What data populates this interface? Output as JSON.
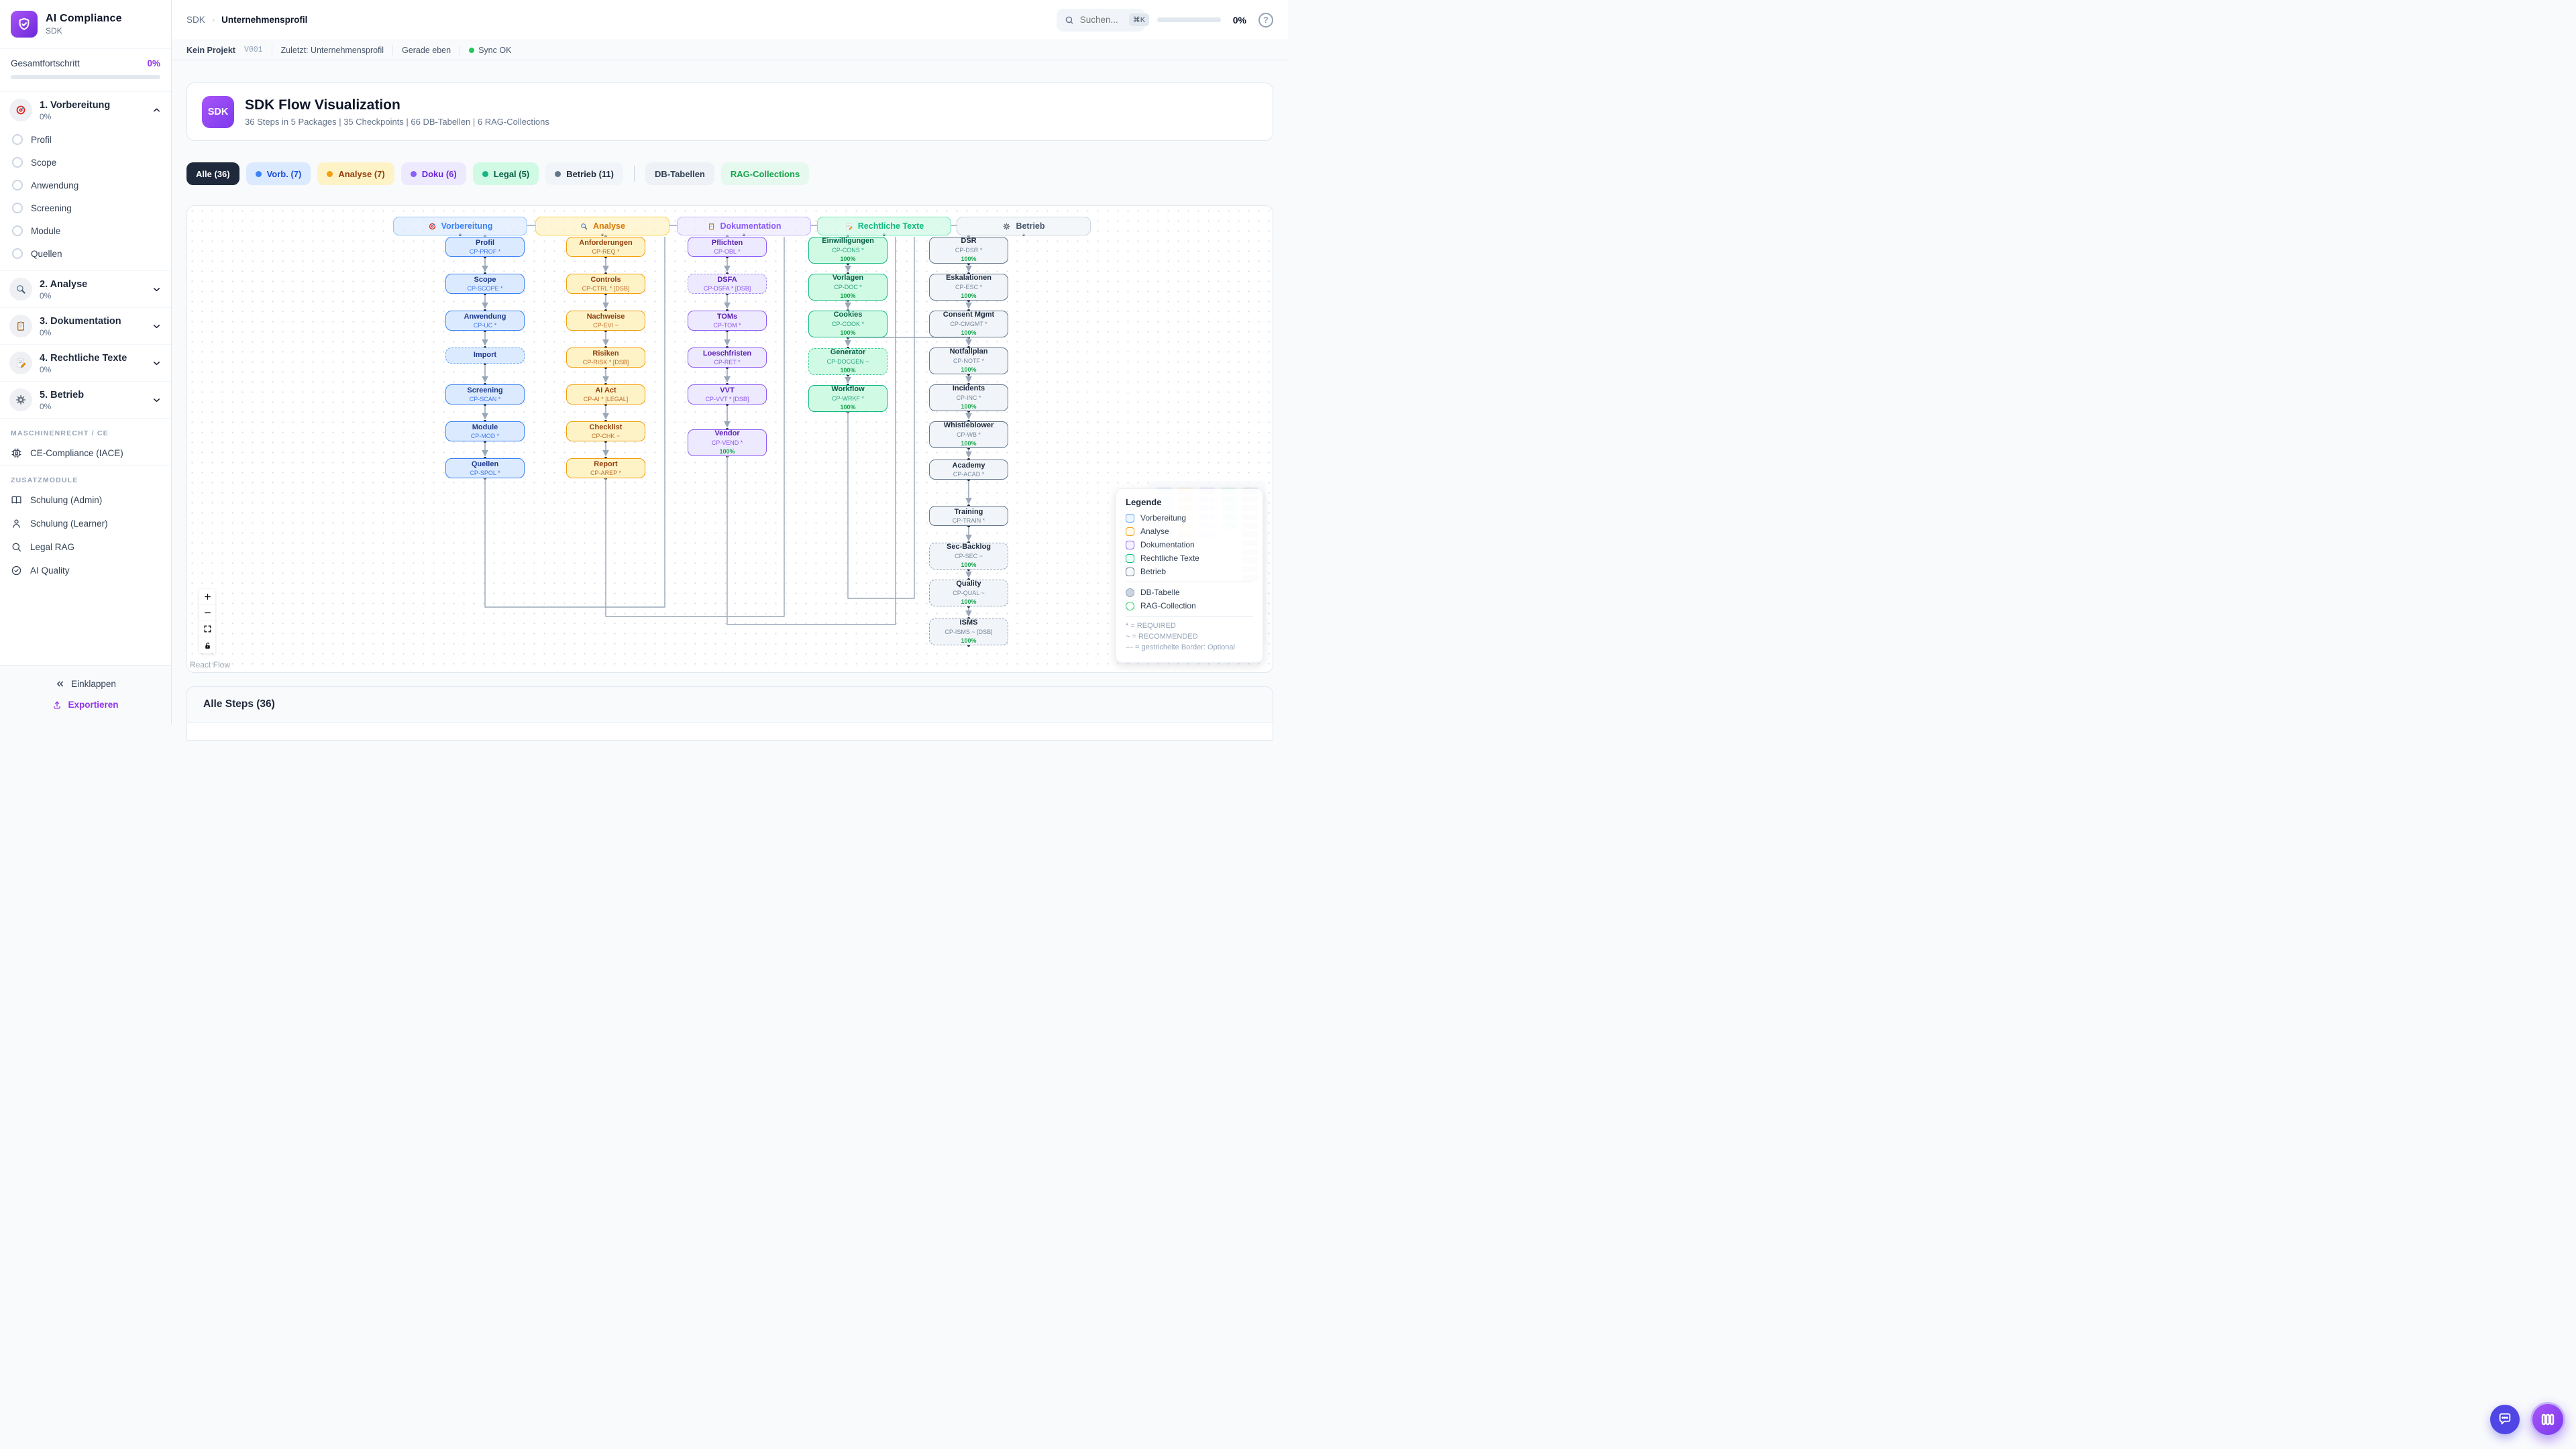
{
  "app": {
    "name": "AI Compliance",
    "subtitle": "SDK"
  },
  "sidebar": {
    "progress": {
      "label": "Gesamtfortschritt",
      "value": "0%"
    },
    "sections": [
      {
        "label": "1. Vorbereitung",
        "value": "0%",
        "icon": "target",
        "expanded": true,
        "items": [
          "Profil",
          "Scope",
          "Anwendung",
          "Screening",
          "Module",
          "Quellen"
        ]
      },
      {
        "label": "2. Analyse",
        "value": "0%",
        "icon": "magnifier",
        "expanded": false
      },
      {
        "label": "3. Dokumentation",
        "value": "0%",
        "icon": "clipboard",
        "expanded": false
      },
      {
        "label": "4. Rechtliche Texte",
        "value": "0%",
        "icon": "memo",
        "expanded": false
      },
      {
        "label": "5. Betrieb",
        "value": "0%",
        "icon": "gear",
        "expanded": false
      }
    ],
    "groups": [
      {
        "header": "MASCHINENRECHT / CE",
        "items": [
          {
            "label": "CE-Compliance (IACE)",
            "icon": "cpu"
          }
        ]
      },
      {
        "header": "ZUSATZMODULE",
        "items": [
          {
            "label": "Schulung (Admin)",
            "icon": "book"
          },
          {
            "label": "Schulung (Learner)",
            "icon": "user"
          },
          {
            "label": "Legal RAG",
            "icon": "search"
          },
          {
            "label": "AI Quality",
            "icon": "check-circle"
          }
        ]
      }
    ],
    "footer": {
      "collapse": "Einklappen",
      "export": "Exportieren"
    }
  },
  "topbar": {
    "breadcrumb": {
      "root": "SDK",
      "current": "Unternehmensprofil"
    },
    "search": {
      "placeholder": "Suchen...",
      "shortcut": "⌘K"
    },
    "progress": "0%"
  },
  "statusbar": {
    "project": "Kein Projekt",
    "version": "V001",
    "last": "Zuletzt: Unternehmensprofil",
    "time": "Gerade eben",
    "sync": "Sync OK"
  },
  "hero": {
    "badge": "SDK",
    "title": "SDK Flow Visualization",
    "subtitle": "36 Steps in 5 Packages | 35 Checkpoints | 66 DB-Tabellen | 6 RAG-Collections"
  },
  "filters": [
    {
      "label": "Alle (36)",
      "bg": "#1e293b",
      "fg": "#ffffff"
    },
    {
      "label": "Vorb. (7)",
      "dot": "#3b82f6",
      "bg": "#dbeafe",
      "fg": "#1d4ed8"
    },
    {
      "label": "Analyse (7)",
      "dot": "#f59e0b",
      "bg": "#fef3c7",
      "fg": "#92400e"
    },
    {
      "label": "Doku (6)",
      "dot": "#8b5cf6",
      "bg": "#ede9fe",
      "fg": "#6d28d9"
    },
    {
      "label": "Legal (5)",
      "dot": "#10b981",
      "bg": "#d1fae5",
      "fg": "#065f46"
    },
    {
      "label": "Betrieb (11)",
      "dot": "#64748b",
      "bg": "#f1f5f9",
      "fg": "#1e293b"
    },
    {
      "divider": true
    },
    {
      "label": "DB-Tabellen",
      "bg": "#eef2f6",
      "fg": "#334155"
    },
    {
      "label": "RAG-Collections",
      "bg": "#e6f9ee",
      "fg": "#16a34a"
    }
  ],
  "flow": {
    "packages": [
      {
        "name": "Vorbereitung",
        "icon": "target",
        "color": {
          "bg": "#dbeafe",
          "border": "#3b82f6",
          "title": "#1e3a8a",
          "sub": "#2563eb",
          "headerBg": "rgba(219,234,254,0.7)",
          "headerBorder": "#93c5fd",
          "headerText": "#3b82f6",
          "dashedBorder": "#60a5fa"
        },
        "nodes": [
          {
            "title": "Profil",
            "sub": "CP-PROF *"
          },
          {
            "title": "Scope",
            "sub": "CP-SCOPE *"
          },
          {
            "title": "Anwendung",
            "sub": "CP-UC *"
          },
          {
            "title": "Import",
            "dashed": true
          },
          {
            "title": "Screening",
            "sub": "CP-SCAN *"
          },
          {
            "title": "Module",
            "sub": "CP-MOD *"
          },
          {
            "title": "Quellen",
            "sub": "CP-SPOL *"
          }
        ]
      },
      {
        "name": "Analyse",
        "icon": "magnifier",
        "color": {
          "bg": "#fef3c7",
          "border": "#f59e0b",
          "title": "#92400e",
          "sub": "#b45309",
          "headerBg": "rgba(254,243,199,0.75)",
          "headerBorder": "#fcd34d",
          "headerText": "#d97706",
          "dashedBorder": "#fbbf24"
        },
        "nodes": [
          {
            "title": "Anforderungen",
            "sub": "CP-REQ *"
          },
          {
            "title": "Controls",
            "sub": "CP-CTRL * [DSB]"
          },
          {
            "title": "Nachweise",
            "sub": "CP-EVI ~"
          },
          {
            "title": "Risiken",
            "sub": "CP-RISK * [DSB]"
          },
          {
            "title": "AI Act",
            "sub": "CP-AI * [LEGAL]"
          },
          {
            "title": "Checklist",
            "sub": "CP-CHK ~"
          },
          {
            "title": "Report",
            "sub": "CP-AREP *"
          }
        ]
      },
      {
        "name": "Dokumentation",
        "icon": "clipboard",
        "color": {
          "bg": "#ede9fe",
          "border": "#8b5cf6",
          "title": "#5b21b6",
          "sub": "#7c3aed",
          "headerBg": "rgba(237,233,254,0.75)",
          "headerBorder": "#c4b5fd",
          "headerText": "#8b5cf6",
          "dashedBorder": "#a78bfa"
        },
        "nodes": [
          {
            "title": "Pflichten",
            "sub": "CP-OBL *"
          },
          {
            "title": "DSFA",
            "sub": "CP-DSFA * [DSB]",
            "dashed": true
          },
          {
            "title": "TOMs",
            "sub": "CP-TOM *"
          },
          {
            "title": "Loeschfristen",
            "sub": "CP-RET *"
          },
          {
            "title": "VVT",
            "sub": "CP-VVT * [DSB]"
          },
          {
            "title": "Vendor",
            "sub": "CP-VEND *",
            "progress": "100%"
          }
        ]
      },
      {
        "name": "Rechtliche Texte",
        "icon": "memo",
        "color": {
          "bg": "#d1fae5",
          "border": "#10b981",
          "title": "#065f46",
          "sub": "#059669",
          "headerBg": "rgba(209,250,229,0.75)",
          "headerBorder": "#6ee7b7",
          "headerText": "#10b981",
          "dashedBorder": "#34d399"
        },
        "nodes": [
          {
            "title": "Einwilligungen",
            "sub": "CP-CONS *",
            "progress": "100%"
          },
          {
            "title": "Vorlagen",
            "sub": "CP-DOC *",
            "progress": "100%"
          },
          {
            "title": "Cookies",
            "sub": "CP-COOK *",
            "progress": "100%"
          },
          {
            "title": "Generator",
            "sub": "CP-DOCGEN ~",
            "progress": "100%",
            "dashed": true
          },
          {
            "title": "Workflow",
            "sub": "CP-WRKF *",
            "progress": "100%"
          }
        ]
      },
      {
        "name": "Betrieb",
        "icon": "gear",
        "color": {
          "bg": "#f1f5f9",
          "border": "#64748b",
          "title": "#1e293b",
          "sub": "#64748b",
          "headerBg": "rgba(241,245,249,0.82)",
          "headerBorder": "#cbd5e1",
          "headerText": "#475569",
          "dashedBorder": "#94a3b8"
        },
        "nodes": [
          {
            "title": "DSR",
            "sub": "CP-DSR *",
            "progress": "100%"
          },
          {
            "title": "Eskalationen",
            "sub": "CP-ESC *",
            "progress": "100%"
          },
          {
            "title": "Consent Mgmt",
            "sub": "CP-CMGMT *",
            "progress": "100%"
          },
          {
            "title": "Notfallplan",
            "sub": "CP-NOTF *",
            "progress": "100%"
          },
          {
            "title": "Incidents",
            "sub": "CP-INC *",
            "progress": "100%"
          },
          {
            "title": "Whistleblower",
            "sub": "CP-WB *",
            "progress": "100%"
          },
          {
            "title": "Academy",
            "sub": "CP-ACAD *"
          },
          {
            "title": "Training",
            "sub": "CP-TRAIN *"
          },
          {
            "title": "Sec-Backlog",
            "sub": "CP-SEC ~",
            "progress": "100%",
            "dashed": true
          },
          {
            "title": "Quality",
            "sub": "CP-QUAL ~",
            "progress": "100%",
            "dashed": true
          },
          {
            "title": "ISMS",
            "sub": "CP-ISMS ~ [DSB]",
            "progress": "100%",
            "dashed": true
          }
        ]
      }
    ]
  },
  "legend": {
    "title": "Legende",
    "package_rows": [
      {
        "label": "Vorbereitung",
        "fill": "#eff6ff",
        "border": "#60a5fa"
      },
      {
        "label": "Analyse",
        "fill": "#fffbeb",
        "border": "#f59e0b"
      },
      {
        "label": "Dokumentation",
        "fill": "#f5f3ff",
        "border": "#8b5cf6"
      },
      {
        "label": "Rechtliche Texte",
        "fill": "#ecfdf5",
        "border": "#10b981"
      },
      {
        "label": "Betrieb",
        "fill": "#f8fafc",
        "border": "#64748b"
      }
    ],
    "shape_rows": [
      {
        "label": "DB-Tabelle",
        "fill": "#cbd5e1",
        "border": "#94a3b8"
      },
      {
        "label": "RAG-Collection",
        "fill": "#ffffff",
        "border": "#22c55e"
      }
    ],
    "notes": [
      "* = REQUIRED",
      "~ = RECOMMENDED",
      "--- = gestrichelte Border: Optional"
    ]
  },
  "canvas": {
    "attribution": "React Flow"
  },
  "steps": {
    "title": "Alle Steps (36)"
  },
  "colors": {
    "accent": "#9333ea",
    "sync": "#22c55e",
    "progress": "#22c55e",
    "progress_text": "#16a34a",
    "edge": "#9aa7b8"
  }
}
